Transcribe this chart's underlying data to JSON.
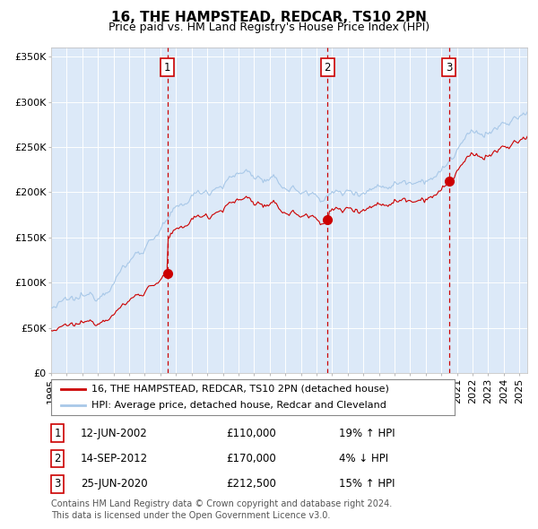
{
  "title": "16, THE HAMPSTEAD, REDCAR, TS10 2PN",
  "subtitle": "Price paid vs. HM Land Registry's House Price Index (HPI)",
  "legend_line1": "16, THE HAMPSTEAD, REDCAR, TS10 2PN (detached house)",
  "legend_line2": "HPI: Average price, detached house, Redcar and Cleveland",
  "footer1": "Contains HM Land Registry data © Crown copyright and database right 2024.",
  "footer2": "This data is licensed under the Open Government Licence v3.0.",
  "sales": [
    {
      "num": 1,
      "date": "12-JUN-2002",
      "price": 110000,
      "pct": "19%",
      "dir": "↑",
      "year_x": 2002.44
    },
    {
      "num": 2,
      "date": "14-SEP-2012",
      "price": 170000,
      "pct": "4%",
      "dir": "↓",
      "year_x": 2012.71
    },
    {
      "num": 3,
      "date": "25-JUN-2020",
      "price": 212500,
      "pct": "15%",
      "dir": "↑",
      "year_x": 2020.48
    }
  ],
  "ylim": [
    0,
    360000
  ],
  "xlim_start": 1995.0,
  "xlim_end": 2025.5,
  "yticks": [
    0,
    50000,
    100000,
    150000,
    200000,
    250000,
    300000,
    350000
  ],
  "ytick_labels": [
    "£0",
    "£50K",
    "£100K",
    "£150K",
    "£200K",
    "£250K",
    "£300K",
    "£350K"
  ],
  "bg_color": "#dce9f8",
  "grid_color": "#ffffff",
  "line_red": "#cc0000",
  "line_blue": "#a8c8e8",
  "dot_color": "#cc0000",
  "vline_color": "#cc0000",
  "box_edge_color": "#cc0000",
  "title_fontsize": 11,
  "subtitle_fontsize": 9,
  "tick_fontsize": 8,
  "legend_fontsize": 8,
  "table_fontsize": 8.5,
  "footer_fontsize": 7
}
